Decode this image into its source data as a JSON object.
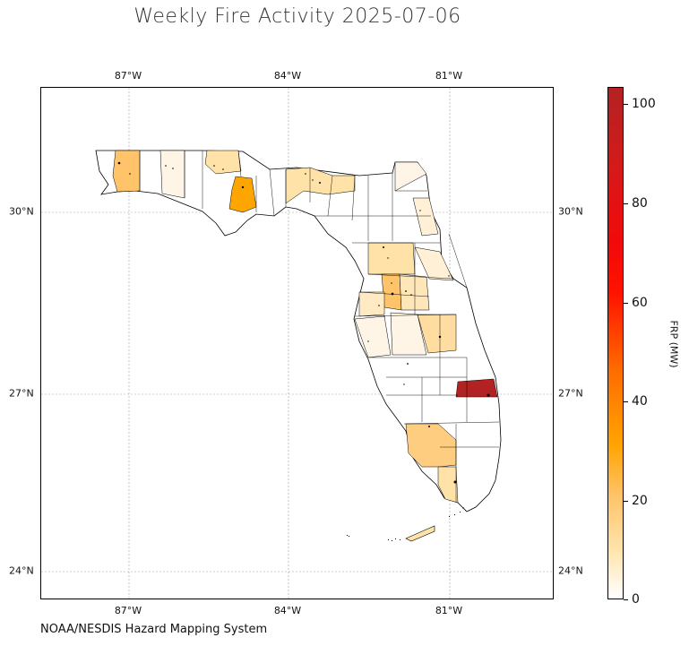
{
  "title": "Weekly Fire Activity 2025-07-06",
  "credit": "NOAA/NESDIS Hazard Mapping System",
  "map": {
    "lon_ticks": [
      "87°W",
      "84°W",
      "81°W"
    ],
    "lat_ticks": [
      "30°N",
      "27°N",
      "24°N"
    ],
    "grid": true
  },
  "colorbar": {
    "label": "FRP (MW)",
    "ticks": [
      "100",
      "80",
      "60",
      "40",
      "20",
      "0"
    ],
    "range": [
      0,
      103
    ],
    "colors": [
      "#ffffff",
      "#ffe2a8",
      "#ffa500",
      "#ff0000",
      "#b22222"
    ]
  },
  "counties": [
    {
      "name": "escambia-area",
      "value": 22
    },
    {
      "name": "walton-area",
      "value": 4
    },
    {
      "name": "jackson-area",
      "value": 10
    },
    {
      "name": "bay-calhoun-area",
      "value": 30
    },
    {
      "name": "madison-taylor-area",
      "value": 12
    },
    {
      "name": "nassau-area",
      "value": 3
    },
    {
      "name": "st-johns-flagler-area",
      "value": 6
    },
    {
      "name": "marion-area",
      "value": 10
    },
    {
      "name": "sumter-area",
      "value": 18
    },
    {
      "name": "lake-area",
      "value": 9
    },
    {
      "name": "volusia-area",
      "value": 5
    },
    {
      "name": "hernando-pasco-area",
      "value": 8
    },
    {
      "name": "pinellas-hillsborough-area",
      "value": 4
    },
    {
      "name": "polk-area",
      "value": 4
    },
    {
      "name": "osceola-area",
      "value": 14
    },
    {
      "name": "st-lucie-area",
      "value": 100
    },
    {
      "name": "hendry-collier-area",
      "value": 20
    },
    {
      "name": "monroe-mainland-area",
      "value": 12
    },
    {
      "name": "florida-keys-area",
      "value": 12
    }
  ]
}
